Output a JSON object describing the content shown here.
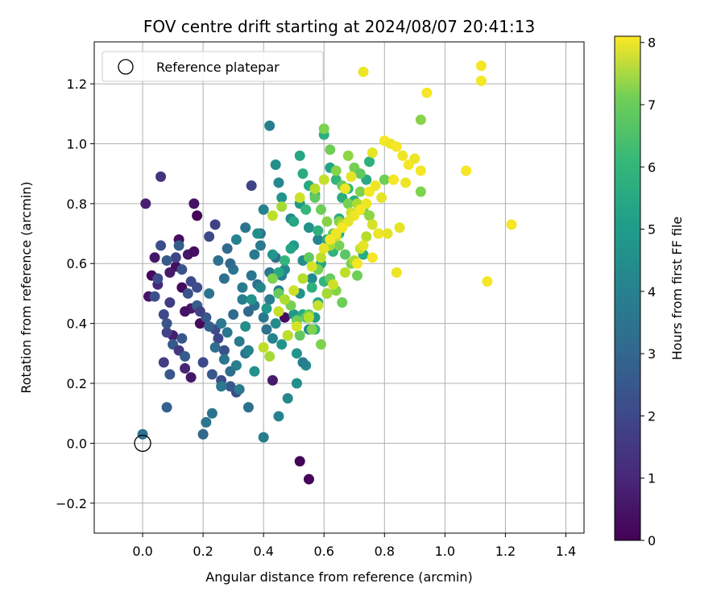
{
  "chart_data": {
    "type": "scatter",
    "title": "FOV centre drift starting at 2024/08/07 20:41:13",
    "xlabel": "Angular distance from reference (arcmin)",
    "ylabel": "Rotation from reference (arcmin)",
    "xlim": [
      -0.16,
      1.46
    ],
    "ylim": [
      -0.3,
      1.34
    ],
    "xticks": [
      "0.0",
      "0.2",
      "0.4",
      "0.6",
      "0.8",
      "1.0",
      "1.2",
      "1.4"
    ],
    "yticks": [
      "−0.2",
      "0.0",
      "0.2",
      "0.4",
      "0.6",
      "0.8",
      "1.0",
      "1.2"
    ],
    "grid": true,
    "legend": {
      "position": "top-left",
      "entries": [
        "Reference platepar"
      ]
    },
    "reference_point": {
      "x": 0.0,
      "y": 0.0
    },
    "colorbar": {
      "label": "Hours from first FF file",
      "min": 0,
      "max": 8.1,
      "colormap": "viridis",
      "ticks": [
        "0",
        "1",
        "2",
        "3",
        "4",
        "5",
        "6",
        "7",
        "8"
      ]
    },
    "series": [
      {
        "x": [
          0.01,
          0.06,
          0.12,
          0.11,
          0.15,
          0.17,
          0.04,
          0.02,
          0.09,
          0.13,
          0.17,
          0.18,
          0.14,
          0.05,
          0.19,
          0.16,
          0.52,
          0.55,
          0.47,
          0.43,
          0.16,
          0.03,
          0.1,
          0.14
        ],
        "y": [
          0.8,
          0.89,
          0.68,
          0.59,
          0.63,
          0.64,
          0.62,
          0.49,
          0.57,
          0.52,
          0.8,
          0.76,
          0.25,
          0.53,
          0.4,
          0.22,
          -0.06,
          -0.12,
          0.42,
          0.21,
          0.45,
          0.56,
          0.36,
          0.44
        ],
        "hours": [
          0.7,
          1.2,
          0.3,
          0.3,
          0.5,
          0.3,
          0.5,
          0.4,
          0.6,
          0.2,
          0.4,
          0.1,
          0.8,
          0.9,
          0.2,
          0.5,
          0.1,
          0.1,
          0.3,
          0.6,
          0.6,
          0.2,
          0.7,
          0.4
        ]
      },
      {
        "x": [
          0.04,
          0.07,
          0.08,
          0.1,
          0.12,
          0.05,
          0.07,
          0.09,
          0.08,
          0.11,
          0.13,
          0.16,
          0.18,
          0.21,
          0.24,
          0.06,
          0.08,
          0.15,
          0.19,
          0.22,
          0.25,
          0.27,
          0.09,
          0.14,
          0.2,
          0.23,
          0.26,
          0.29,
          0.31,
          0.36,
          0.08,
          0.22,
          0.24,
          0.13,
          0.12,
          0.18
        ],
        "y": [
          0.49,
          0.43,
          0.37,
          0.33,
          0.31,
          0.55,
          0.27,
          0.23,
          0.12,
          0.62,
          0.58,
          0.54,
          0.46,
          0.42,
          0.38,
          0.66,
          0.61,
          0.5,
          0.44,
          0.39,
          0.35,
          0.31,
          0.47,
          0.29,
          0.27,
          0.23,
          0.21,
          0.19,
          0.17,
          0.86,
          0.4,
          0.69,
          0.73,
          0.35,
          0.66,
          0.52
        ],
        "hours": [
          2.0,
          1.8,
          1.6,
          2.3,
          1.4,
          1.9,
          1.5,
          2.2,
          2.5,
          1.7,
          2.1,
          1.8,
          2.4,
          2.2,
          1.9,
          2.0,
          2.3,
          2.1,
          1.6,
          2.5,
          1.7,
          2.0,
          1.5,
          2.4,
          1.8,
          2.2,
          1.9,
          2.3,
          2.0,
          1.7,
          2.1,
          1.8,
          1.6,
          2.2,
          2.4,
          1.9
        ]
      },
      {
        "x": [
          0.0,
          0.21,
          0.2,
          0.23,
          0.26,
          0.29,
          0.32,
          0.35,
          0.28,
          0.3,
          0.33,
          0.37,
          0.4,
          0.38,
          0.42,
          0.36,
          0.25,
          0.28,
          0.31,
          0.34,
          0.39,
          0.44,
          0.46,
          0.27,
          0.3,
          0.33,
          0.35,
          0.22,
          0.26,
          0.43,
          0.41,
          0.24,
          0.27,
          0.32,
          0.34,
          0.31,
          0.29,
          0.37,
          0.39,
          0.42,
          0.45
        ],
        "y": [
          0.03,
          0.07,
          0.03,
          0.1,
          0.19,
          0.24,
          0.18,
          0.12,
          0.37,
          0.43,
          0.48,
          0.46,
          0.42,
          0.53,
          0.48,
          0.56,
          0.61,
          0.65,
          0.68,
          0.72,
          0.66,
          0.62,
          0.56,
          0.55,
          0.58,
          0.52,
          0.44,
          0.5,
          0.4,
          0.35,
          0.38,
          0.32,
          0.28,
          0.34,
          0.3,
          0.26,
          0.6,
          0.63,
          0.7,
          0.57,
          0.51
        ],
        "hours": [
          3.0,
          3.2,
          2.7,
          3.1,
          3.3,
          2.9,
          3.4,
          3.0,
          3.2,
          2.8,
          3.5,
          3.1,
          3.3,
          2.9,
          3.4,
          3.2,
          3.0,
          2.8,
          3.6,
          3.1,
          3.3,
          2.9,
          3.5,
          3.0,
          3.2,
          3.4,
          2.8,
          3.1,
          3.3,
          3.6,
          3.0,
          2.9,
          3.2,
          3.4,
          3.1,
          3.5,
          2.8,
          3.3,
          3.0,
          3.2,
          3.4
        ]
      },
      {
        "x": [
          0.42,
          0.44,
          0.45,
          0.46,
          0.49,
          0.52,
          0.55,
          0.58,
          0.38,
          0.4,
          0.43,
          0.47,
          0.5,
          0.53,
          0.56,
          0.36,
          0.39,
          0.41,
          0.44,
          0.48,
          0.51,
          0.54,
          0.37,
          0.35,
          0.34,
          0.4,
          0.45,
          0.48,
          0.51,
          0.53,
          0.46,
          0.5,
          0.52,
          0.55,
          0.57
        ],
        "y": [
          1.06,
          0.93,
          0.87,
          0.82,
          0.75,
          0.8,
          0.72,
          0.68,
          0.7,
          0.78,
          0.63,
          0.58,
          0.66,
          0.61,
          0.55,
          0.48,
          0.52,
          0.45,
          0.4,
          0.36,
          0.3,
          0.26,
          0.24,
          0.31,
          0.39,
          0.02,
          0.09,
          0.15,
          0.2,
          0.27,
          0.33,
          0.43,
          0.5,
          0.38,
          0.42
        ],
        "hours": [
          3.5,
          4.0,
          3.8,
          4.2,
          3.9,
          4.3,
          4.1,
          3.7,
          4.0,
          3.6,
          4.2,
          3.8,
          4.4,
          4.0,
          3.9,
          4.1,
          3.7,
          4.3,
          3.9,
          4.0,
          4.2,
          3.8,
          4.1,
          3.6,
          4.0,
          3.4,
          3.6,
          3.8,
          4.0,
          3.5,
          4.2,
          4.3,
          4.1,
          3.9,
          4.4
        ]
      },
      {
        "x": [
          0.52,
          0.53,
          0.55,
          0.57,
          0.6,
          0.62,
          0.64,
          0.66,
          0.5,
          0.54,
          0.58,
          0.61,
          0.63,
          0.65,
          0.49,
          0.47,
          0.45,
          0.56,
          0.59,
          0.68,
          0.7,
          0.72,
          0.74,
          0.65,
          0.6,
          0.58,
          0.53,
          0.57,
          0.61,
          0.75,
          0.73
        ],
        "y": [
          0.96,
          0.9,
          0.86,
          0.83,
          1.03,
          0.92,
          0.88,
          0.82,
          0.74,
          0.78,
          0.71,
          0.68,
          0.64,
          0.75,
          0.65,
          0.61,
          0.57,
          0.52,
          0.6,
          0.85,
          0.81,
          0.78,
          0.88,
          0.7,
          0.54,
          0.47,
          0.43,
          0.38,
          0.5,
          0.94,
          0.63
        ],
        "hours": [
          4.8,
          5.0,
          4.9,
          5.2,
          5.1,
          4.7,
          5.3,
          5.0,
          4.8,
          5.4,
          5.1,
          4.9,
          5.2,
          5.0,
          4.7,
          5.3,
          4.9,
          5.1,
          4.8,
          5.4,
          5.0,
          5.2,
          4.9,
          5.1,
          5.3,
          4.8,
          5.0,
          5.2,
          4.9,
          5.1,
          5.0
        ]
      },
      {
        "x": [
          0.6,
          0.62,
          0.64,
          0.66,
          0.68,
          0.7,
          0.72,
          0.57,
          0.59,
          0.61,
          0.63,
          0.65,
          0.67,
          0.69,
          0.71,
          0.55,
          0.58,
          0.62,
          0.64,
          0.66,
          0.54,
          0.56,
          0.73,
          0.75,
          0.78,
          0.92,
          0.92,
          0.8,
          0.72,
          0.68,
          0.65,
          0.51,
          0.43,
          0.45,
          0.49,
          0.52,
          0.55,
          0.59
        ],
        "y": [
          1.05,
          0.98,
          0.91,
          0.86,
          0.96,
          0.92,
          0.84,
          0.82,
          0.78,
          0.74,
          0.7,
          0.66,
          0.63,
          0.6,
          0.56,
          0.62,
          0.58,
          0.55,
          0.51,
          0.47,
          0.42,
          0.38,
          0.78,
          0.76,
          0.7,
          1.08,
          0.84,
          0.88,
          0.9,
          0.8,
          0.74,
          0.41,
          0.55,
          0.5,
          0.46,
          0.36,
          0.43,
          0.33
        ],
        "hours": [
          6.5,
          6.3,
          6.6,
          6.2,
          6.7,
          6.4,
          6.5,
          6.1,
          6.3,
          6.6,
          6.2,
          6.4,
          6.0,
          6.5,
          6.3,
          6.1,
          6.4,
          6.2,
          6.6,
          6.3,
          6.0,
          6.5,
          6.2,
          6.7,
          6.4,
          6.6,
          6.5,
          6.3,
          6.1,
          6.4,
          6.6,
          6.3,
          6.5,
          6.2,
          6.4,
          6.1,
          6.3,
          6.5
        ]
      },
      {
        "x": [
          0.4,
          0.42,
          0.45,
          0.47,
          0.5,
          0.53,
          0.56,
          0.59,
          0.62,
          0.64,
          0.66,
          0.69,
          0.71,
          0.48,
          0.51,
          0.55,
          0.58,
          0.61,
          0.63,
          0.67,
          0.7,
          0.72,
          0.74,
          0.76,
          0.43,
          0.46,
          0.52,
          0.57,
          0.6
        ],
        "y": [
          0.32,
          0.29,
          0.44,
          0.48,
          0.51,
          0.55,
          0.59,
          0.62,
          0.66,
          0.69,
          0.73,
          0.77,
          0.8,
          0.36,
          0.39,
          0.42,
          0.46,
          0.5,
          0.53,
          0.57,
          0.61,
          0.65,
          0.69,
          0.73,
          0.76,
          0.79,
          0.82,
          0.85,
          0.88
        ],
        "hours": [
          7.3,
          7.0,
          7.4,
          7.1,
          7.5,
          7.2,
          7.6,
          7.3,
          7.0,
          7.4,
          7.2,
          7.5,
          7.1,
          7.3,
          7.6,
          7.2,
          7.4,
          7.0,
          7.5,
          7.3,
          7.1,
          7.4,
          7.2,
          7.6,
          7.3,
          7.0,
          7.5,
          7.2,
          7.4
        ]
      },
      {
        "x": [
          0.73,
          1.12,
          1.12,
          0.94,
          0.76,
          0.8,
          0.82,
          0.84,
          0.86,
          0.88,
          0.9,
          0.92,
          0.85,
          0.87,
          0.83,
          0.79,
          0.77,
          0.75,
          0.81,
          0.74,
          0.72,
          0.7,
          0.68,
          0.66,
          0.64,
          0.62,
          0.6,
          0.78,
          0.76,
          0.73,
          0.71,
          1.07,
          1.22,
          1.14,
          0.84,
          0.69,
          0.67
        ],
        "y": [
          1.24,
          1.26,
          1.21,
          1.17,
          0.97,
          1.01,
          1.0,
          0.99,
          0.96,
          0.93,
          0.95,
          0.91,
          0.72,
          0.87,
          0.88,
          0.82,
          0.86,
          0.84,
          0.7,
          0.8,
          0.78,
          0.76,
          0.74,
          0.72,
          0.7,
          0.68,
          0.65,
          0.7,
          0.62,
          0.66,
          0.6,
          0.91,
          0.73,
          0.54,
          0.57,
          0.89,
          0.85
        ],
        "hours": [
          7.9,
          8.0,
          8.0,
          8.0,
          7.8,
          8.0,
          7.9,
          8.0,
          7.9,
          8.0,
          7.9,
          8.0,
          7.8,
          7.9,
          8.0,
          7.8,
          7.9,
          8.0,
          7.8,
          7.9,
          8.0,
          7.9,
          7.8,
          8.0,
          7.9,
          8.0,
          7.8,
          7.9,
          8.0,
          7.8,
          8.0,
          8.0,
          8.0,
          8.0,
          7.9,
          7.8,
          7.9
        ]
      }
    ]
  }
}
